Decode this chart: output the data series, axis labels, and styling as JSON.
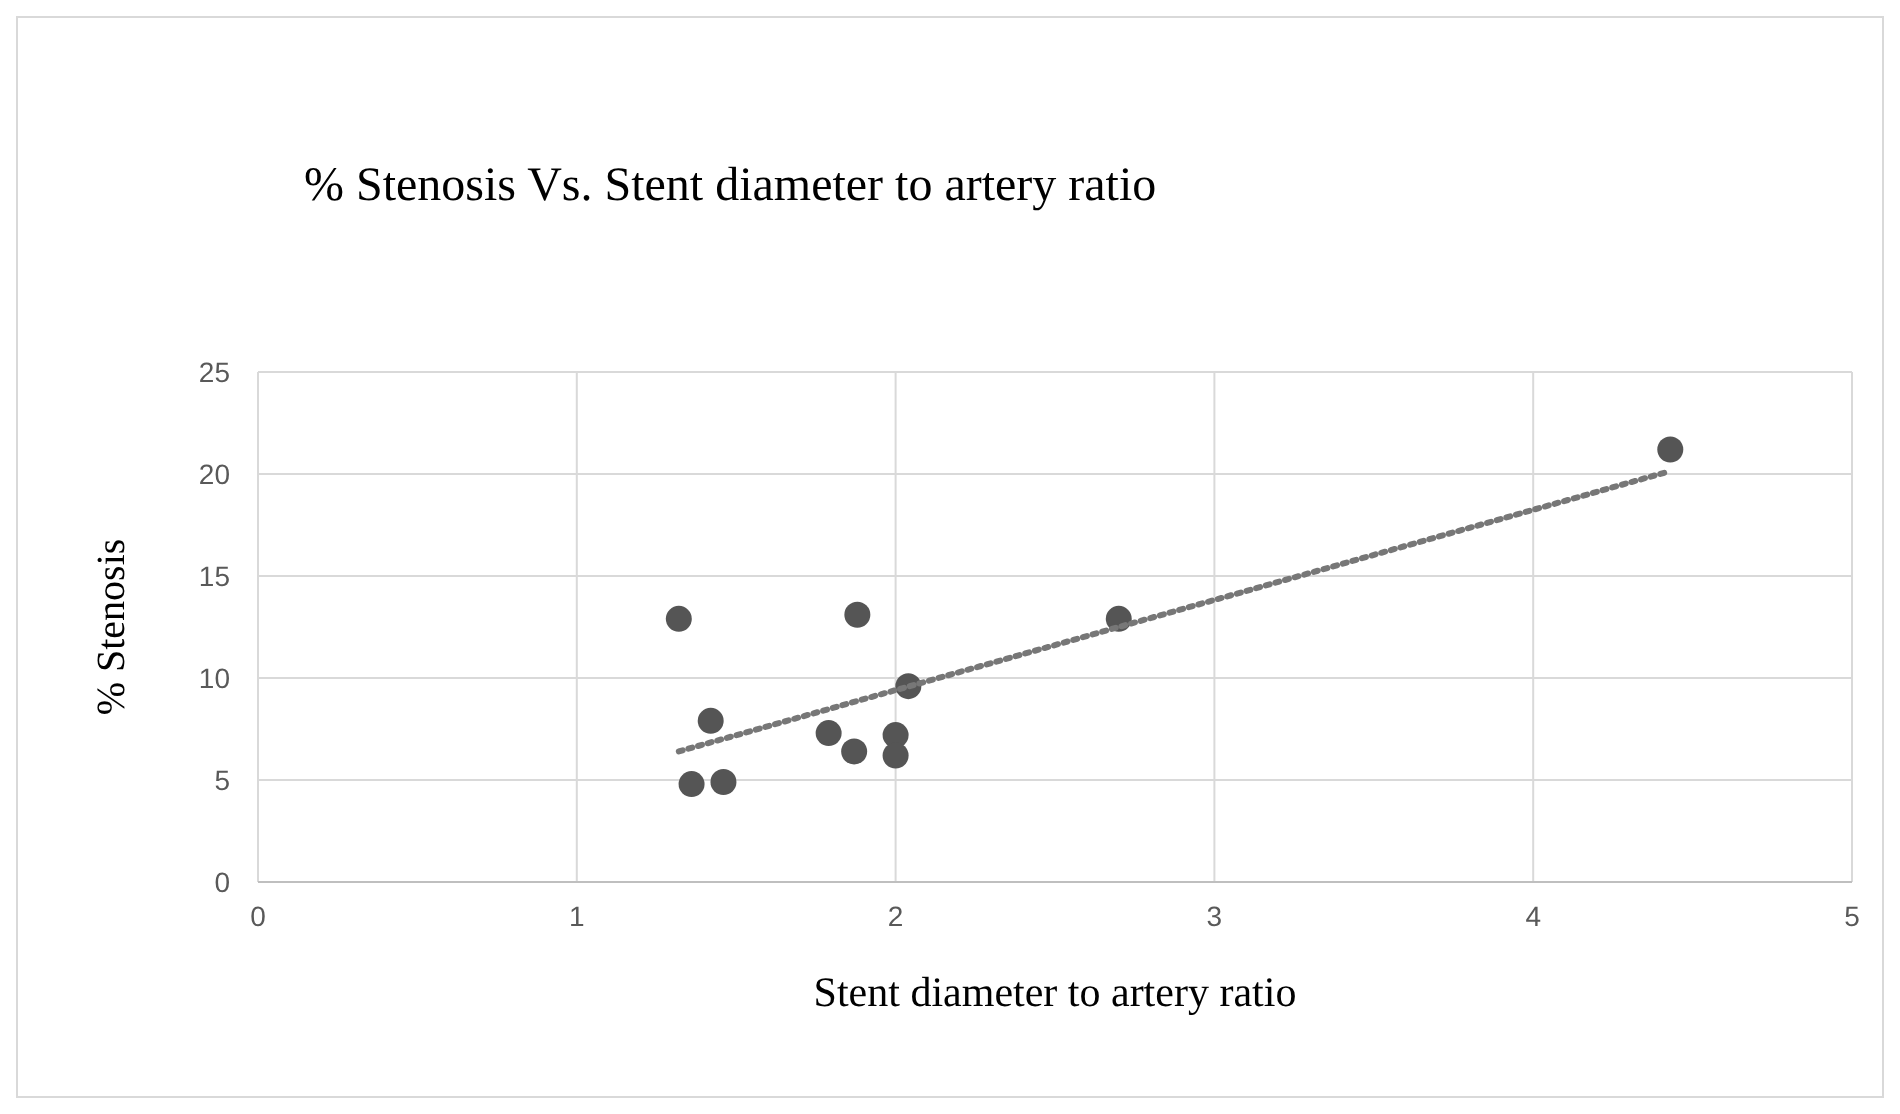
{
  "chart_data": {
    "type": "scatter",
    "title": "% Stenosis Vs. Stent diameter to artery ratio",
    "xlabel": "Stent diameter to artery ratio",
    "ylabel": "% Stenosis",
    "xlim": [
      0,
      5
    ],
    "xticks": [
      0,
      1,
      2,
      3,
      4,
      5
    ],
    "ylim": [
      0,
      25
    ],
    "yticks": [
      0,
      5,
      10,
      15,
      20,
      25
    ],
    "grid": true,
    "series": [
      {
        "type": "scatter",
        "color": "#555555",
        "marker": "circle",
        "x": [
          1.32,
          1.88,
          1.42,
          1.36,
          1.46,
          1.79,
          1.87,
          2.0,
          2.0,
          2.04,
          2.7,
          4.43
        ],
        "values": [
          12.9,
          13.1,
          7.9,
          4.8,
          4.9,
          7.3,
          6.4,
          7.2,
          6.2,
          9.6,
          12.9,
          21.2
        ]
      },
      {
        "type": "line",
        "color": "#777777",
        "line_style": "dotted",
        "marker": "none",
        "x": [
          1.32,
          4.42
        ],
        "values": [
          6.4,
          20.1
        ]
      }
    ]
  }
}
